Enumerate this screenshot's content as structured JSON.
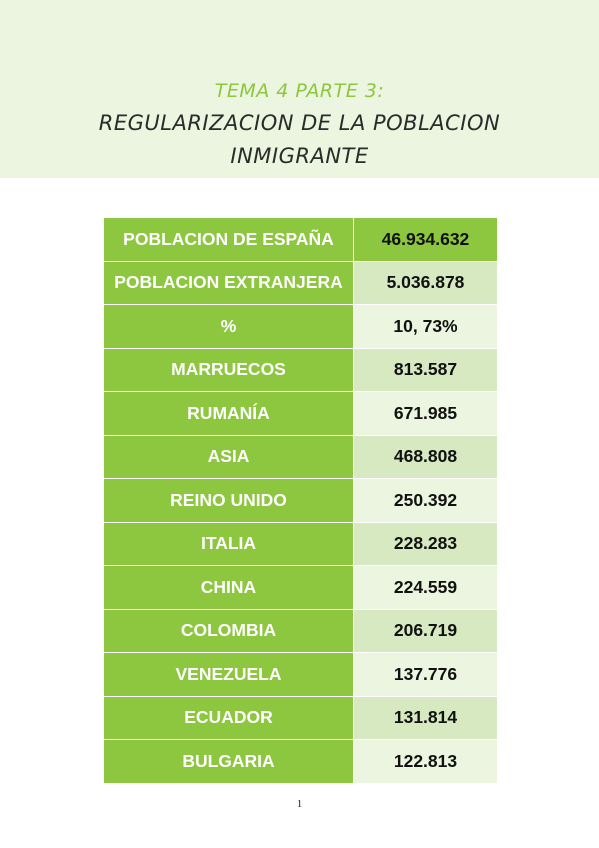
{
  "header": {
    "subject": "TEMA 4 PARTE 3:",
    "title_line1": "REGULARIZACION DE LA POBLACION",
    "title_line2": "INMIGRANTE"
  },
  "table": {
    "rows": [
      {
        "label": "POBLACION DE ESPAÑA",
        "value": "46.934.632"
      },
      {
        "label": "POBLACION EXTRANJERA",
        "value": "5.036.878"
      },
      {
        "label": "%",
        "value": "10, 73%"
      },
      {
        "label": "MARRUECOS",
        "value": "813.587"
      },
      {
        "label": "RUMANÍA",
        "value": "671.985"
      },
      {
        "label": "ASIA",
        "value": "468.808"
      },
      {
        "label": "REINO UNIDO",
        "value": "250.392"
      },
      {
        "label": "ITALIA",
        "value": "228.283"
      },
      {
        "label": "CHINA",
        "value": "224.559"
      },
      {
        "label": "COLOMBIA",
        "value": "206.719"
      },
      {
        "label": "VENEZUELA",
        "value": "137.776"
      },
      {
        "label": "ECUADOR",
        "value": "131.814"
      },
      {
        "label": "BULGARIA",
        "value": "122.813"
      }
    ]
  },
  "footer": {
    "page_number": "1"
  },
  "colors": {
    "accent_green": "#8dc63f",
    "header_band": "#ebf5df",
    "row_dark": "#d6e9c1",
    "row_light": "#ebf5df"
  }
}
